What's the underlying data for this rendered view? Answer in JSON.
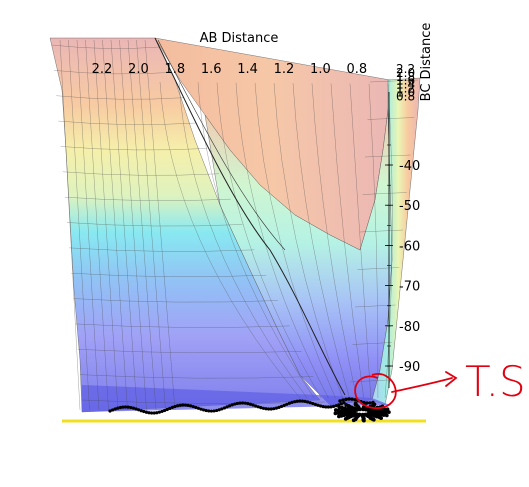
{
  "chart_data": {
    "type": "surface",
    "xlabel": "AB Distance",
    "ylabel": "BC Distance",
    "x_ticks": [
      "2.2",
      "2.0",
      "1.8",
      "1.6",
      "1.4",
      "1.2",
      "1.0",
      "0.8"
    ],
    "y_ticks": [
      "2.2",
      "2.0",
      "1.8",
      "1.6",
      "1.4",
      "1.2",
      "1.0",
      "0.8"
    ],
    "z_ticks": [
      "-40",
      "-50",
      "-60",
      "-70",
      "-80",
      "-90"
    ],
    "energy_bands": [
      {
        "level": -100,
        "color": "#5a5ae6"
      },
      {
        "level": -95,
        "color": "#6f6ff0"
      },
      {
        "level": -90,
        "color": "#8080f6"
      },
      {
        "level": -85,
        "color": "#8aa6f4"
      },
      {
        "level": -80,
        "color": "#7ec0f2"
      },
      {
        "level": -75,
        "color": "#5fd2ec"
      },
      {
        "level": -70,
        "color": "#6ee2ee"
      },
      {
        "level": -65,
        "color": "#8aeedb"
      },
      {
        "level": -60,
        "color": "#c0f0b6"
      },
      {
        "level": -55,
        "color": "#e8f3a8"
      },
      {
        "level": -50,
        "color": "#f4e88e"
      },
      {
        "level": -45,
        "color": "#f6c88a"
      },
      {
        "level": -40,
        "color": "#f3ad93"
      },
      {
        "level": -35,
        "color": "#ee9e98"
      },
      {
        "level": -30,
        "color": "#e8a8a8"
      }
    ],
    "annotation": "T.S."
  }
}
